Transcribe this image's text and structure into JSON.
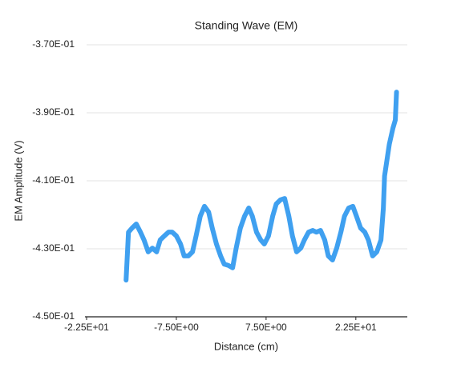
{
  "chart_data": {
    "type": "line",
    "title": "Standing Wave (EM)",
    "x_label": "Distance (cm)",
    "y_label": "EM Amplitude (V)",
    "color": "#3fa0f0",
    "grid": true,
    "x": [
      -15.9,
      -15.5,
      -14.9,
      -14.2,
      -13.5,
      -12.9,
      -12.2,
      -11.5,
      -10.8,
      -10.2,
      -9.5,
      -8.8,
      -8.2,
      -7.5,
      -6.8,
      -6.2,
      -5.5,
      -4.8,
      -4.2,
      -3.5,
      -2.8,
      -2.1,
      -1.5,
      -0.8,
      -0.1,
      0.5,
      1.2,
      1.9,
      2.5,
      3.2,
      3.9,
      4.6,
      5.2,
      5.9,
      6.6,
      7.2,
      7.9,
      8.6,
      9.2,
      9.9,
      10.6,
      11.3,
      11.9,
      12.6,
      13.3,
      13.9,
      14.6,
      15.3,
      15.9,
      16.6,
      17.3,
      17.9,
      18.6,
      19.3,
      20.0,
      20.6,
      21.3,
      22.0,
      22.6,
      23.3,
      24.0,
      24.6,
      25.3,
      26.0,
      26.7,
      27.1,
      27.3,
      27.7,
      28.1,
      28.7,
      29.1,
      29.3
    ],
    "values": [
      -0.4392,
      -0.4251,
      -0.4239,
      -0.4227,
      -0.4251,
      -0.4274,
      -0.4309,
      -0.4298,
      -0.4309,
      -0.4274,
      -0.4262,
      -0.4251,
      -0.4251,
      -0.4262,
      -0.4286,
      -0.4321,
      -0.4321,
      -0.4309,
      -0.4262,
      -0.4204,
      -0.4175,
      -0.4192,
      -0.4239,
      -0.4286,
      -0.4321,
      -0.4345,
      -0.4349,
      -0.4356,
      -0.4298,
      -0.4239,
      -0.4204,
      -0.418,
      -0.4204,
      -0.4251,
      -0.4274,
      -0.4286,
      -0.4262,
      -0.4204,
      -0.4168,
      -0.4156,
      -0.4152,
      -0.4204,
      -0.4262,
      -0.4309,
      -0.4298,
      -0.4274,
      -0.4251,
      -0.4246,
      -0.4251,
      -0.4246,
      -0.4274,
      -0.4321,
      -0.4333,
      -0.4298,
      -0.4251,
      -0.4204,
      -0.418,
      -0.4175,
      -0.4204,
      -0.4239,
      -0.4251,
      -0.4274,
      -0.4321,
      -0.4309,
      -0.4274,
      -0.418,
      -0.4086,
      -0.4039,
      -0.3992,
      -0.3945,
      -0.3921,
      -0.3839
    ],
    "xlim": [
      -22.5,
      31.1
    ],
    "ylim": [
      -0.45,
      -0.37
    ],
    "xticks": [
      {
        "value": -22.5,
        "label": "-2.25E+01"
      },
      {
        "value": -7.5,
        "label": "-7.50E+00"
      },
      {
        "value": 7.5,
        "label": "7.50E+00"
      },
      {
        "value": 22.5,
        "label": "2.25E+01"
      }
    ],
    "yticks": [
      {
        "value": -0.45,
        "label": "-4.50E-01"
      },
      {
        "value": -0.43,
        "label": "-4.30E-01"
      },
      {
        "value": -0.41,
        "label": "-4.10E-01"
      },
      {
        "value": -0.39,
        "label": "-3.90E-01"
      },
      {
        "value": -0.37,
        "label": "-3.70E-01"
      }
    ]
  }
}
